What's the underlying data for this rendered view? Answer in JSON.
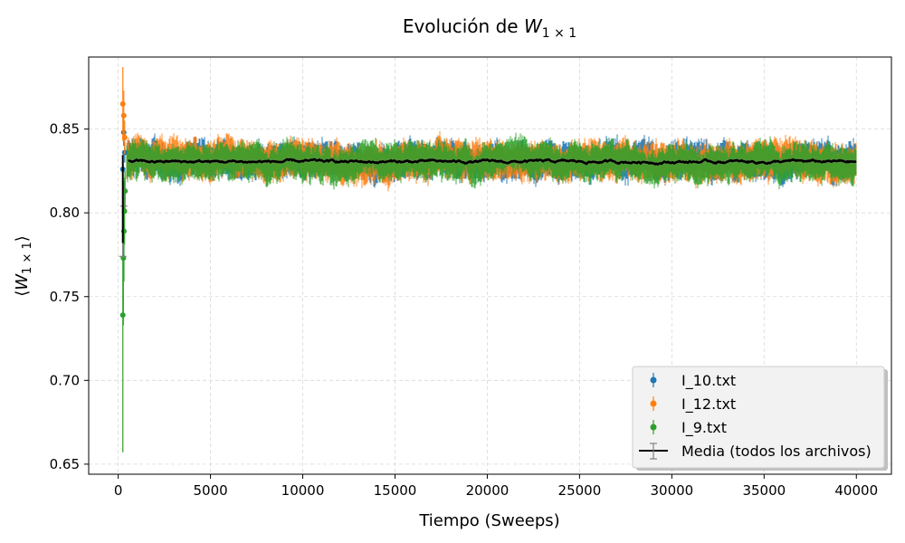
{
  "chart_data": {
    "type": "scatter",
    "title_prefix": "Evolución de ",
    "title_math_var": "W",
    "title_math_sub": "1 × 1",
    "xlabel": "Tiempo (Sweeps)",
    "ylabel_var": "W",
    "ylabel_sub": "1 × 1",
    "xlim": [
      -1600,
      41900
    ],
    "ylim": [
      0.644,
      0.893
    ],
    "xticks": [
      0,
      5000,
      10000,
      15000,
      20000,
      25000,
      30000,
      35000,
      40000
    ],
    "xtick_labels": [
      "0",
      "5000",
      "10000",
      "15000",
      "20000",
      "25000",
      "30000",
      "35000",
      "40000"
    ],
    "yticks": [
      0.65,
      0.7,
      0.75,
      0.8,
      0.85
    ],
    "ytick_labels": [
      "0.65",
      "0.70",
      "0.75",
      "0.80",
      "0.85"
    ],
    "grid": true,
    "legend_position": "lower-right",
    "x_start": 250,
    "x_end": 40000,
    "series": [
      {
        "name": "I_10.txt",
        "color": "#1f77b4",
        "mean_level": 0.831,
        "spread": 0.0115,
        "initial_points": [
          {
            "x": 250,
            "y": 0.826,
            "err": 0.005
          },
          {
            "x": 300,
            "y": 0.848,
            "err": 0.008
          },
          {
            "x": 350,
            "y": 0.836,
            "err": 0.006
          }
        ]
      },
      {
        "name": "I_12.txt",
        "color": "#ff7f0e",
        "mean_level": 0.831,
        "spread": 0.0125,
        "initial_points": [
          {
            "x": 250,
            "y": 0.865,
            "err": 0.022
          },
          {
            "x": 300,
            "y": 0.858,
            "err": 0.015
          },
          {
            "x": 350,
            "y": 0.845,
            "err": 0.01
          }
        ]
      },
      {
        "name": "I_9.txt",
        "color": "#2ca02c",
        "mean_level": 0.831,
        "spread": 0.0115,
        "initial_points": [
          {
            "x": 250,
            "y": 0.739,
            "err": 0.082
          },
          {
            "x": 280,
            "y": 0.773,
            "err": 0.04
          },
          {
            "x": 310,
            "y": 0.789,
            "err": 0.03
          },
          {
            "x": 340,
            "y": 0.801,
            "err": 0.02
          },
          {
            "x": 370,
            "y": 0.813,
            "err": 0.012
          }
        ]
      },
      {
        "name": "Media (todos los archivos)",
        "color": "#000000",
        "errcolor": "#808080",
        "mean_level": 0.8305,
        "spread": 0.0015,
        "initial_points": [
          {
            "x": 250,
            "y": 0.782,
            "err": 0.008
          },
          {
            "x": 300,
            "y": 0.81,
            "err": 0.006
          }
        ]
      }
    ]
  }
}
